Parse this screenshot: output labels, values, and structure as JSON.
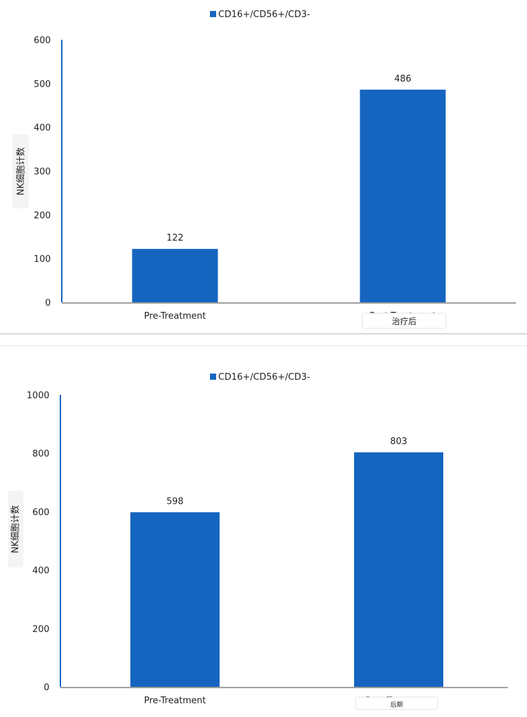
{
  "chart_data": [
    {
      "type": "bar",
      "legend": "CD16+/CD56+/CD3-",
      "legend_position": "top-center",
      "ylabel": "NK细胞计数",
      "xlabel": "",
      "categories": [
        "Pre-Treatment",
        "Post-Treatment"
      ],
      "category_overlays": [
        "",
        "治疗后"
      ],
      "series": [
        {
          "name": "CD16+/CD56+/CD3-",
          "values": [
            122,
            486
          ]
        }
      ],
      "data_labels": [
        "122",
        "486"
      ],
      "ylim": [
        0,
        600
      ],
      "yticks": [
        0,
        100,
        200,
        300,
        400,
        500,
        600
      ],
      "grid": false,
      "colors": {
        "bar": "#1565C0",
        "axis": "#1565C0",
        "baseline": "#9e9e9e",
        "text": "#222222"
      }
    },
    {
      "type": "bar",
      "legend": "CD16+/CD56+/CD3-",
      "legend_position": "top-center",
      "ylabel": "NK细胞计数",
      "xlabel": "",
      "categories": [
        "Pre-Treatment",
        "Post-Treatment"
      ],
      "category_overlays": [
        "",
        "后期"
      ],
      "series": [
        {
          "name": "CD16+/CD56+/CD3-",
          "values": [
            598,
            803
          ]
        }
      ],
      "data_labels": [
        "598",
        "803"
      ],
      "ylim": [
        0,
        1000
      ],
      "yticks": [
        0,
        200,
        400,
        600,
        800,
        1000
      ],
      "grid": false,
      "colors": {
        "bar": "#1565C0",
        "axis": "#1565C0",
        "baseline": "#9e9e9e",
        "text": "#222222"
      }
    }
  ]
}
